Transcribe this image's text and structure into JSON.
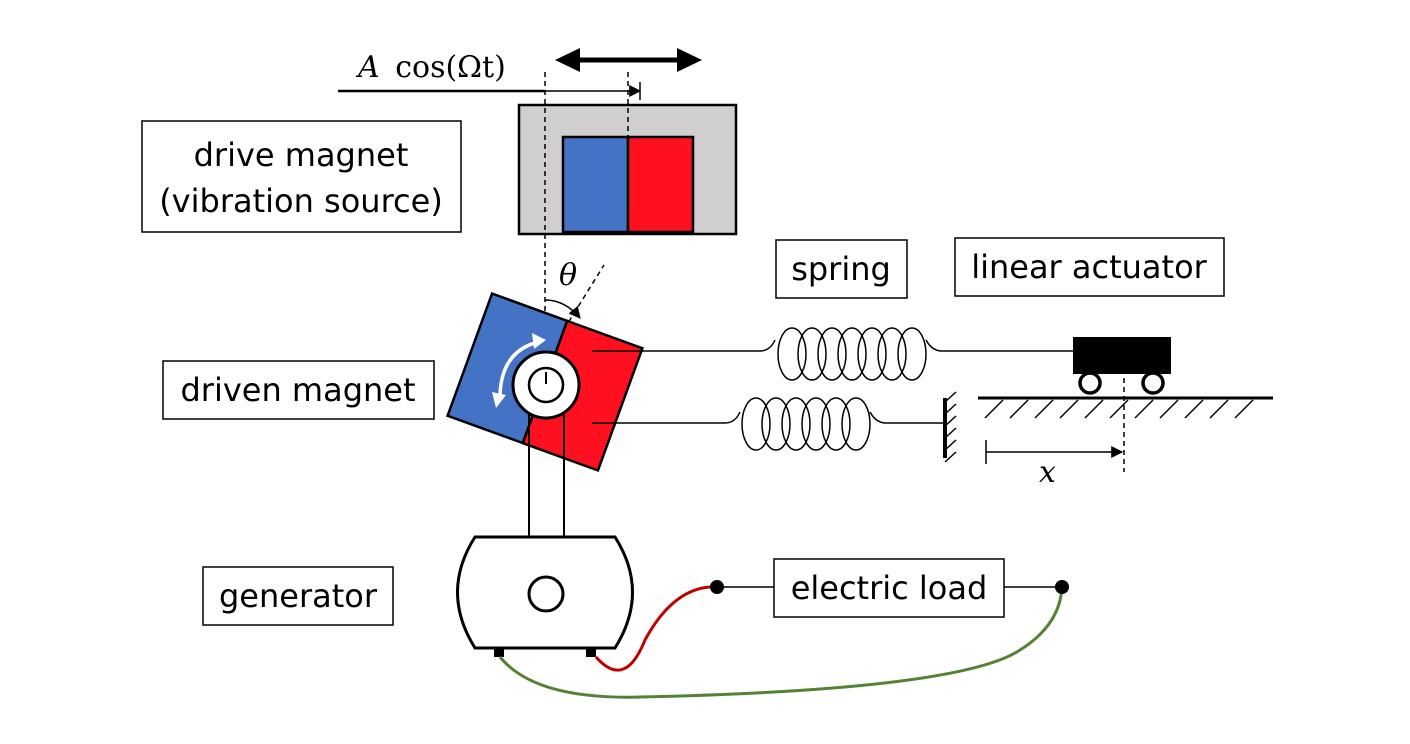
{
  "labels": {
    "drive_magnet_line1": "drive magnet",
    "drive_magnet_line2": "(vibration source)",
    "driven_magnet": "driven magnet",
    "spring": "spring",
    "linear_actuator": "linear actuator",
    "generator": "generator",
    "electric_load": "electric load"
  },
  "math": {
    "excitation_prefix": "A",
    "excitation_func": "cos(Ωt)",
    "angle": "θ",
    "displacement": "x"
  },
  "colors": {
    "magnet_blue": "#4472c4",
    "magnet_red": "#ff1020",
    "housing_gray": "#d0cece",
    "wire_red": "#c00000",
    "wire_green": "#548235"
  },
  "icons": {
    "rotation_arrow": "curved-double-arrow-icon",
    "oscillation_arrow": "double-headed-arrow-icon"
  }
}
